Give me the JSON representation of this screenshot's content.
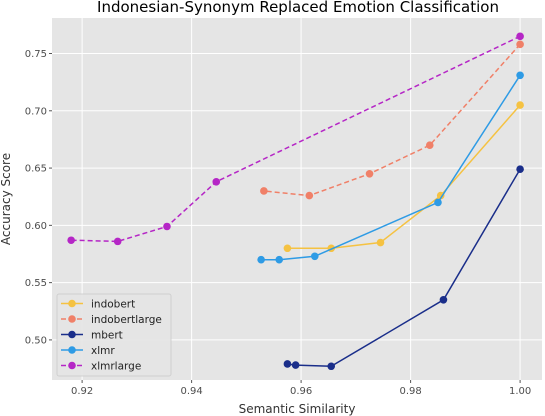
{
  "chart_data": {
    "type": "line",
    "title": "Indonesian-Synonym Replaced Emotion Classification",
    "xlabel": "Semantic Similarity",
    "ylabel": "Accuracy Score",
    "xlim": [
      0.9145,
      1.004
    ],
    "ylim": [
      0.465,
      0.781
    ],
    "xticks": [
      0.92,
      0.94,
      0.96,
      0.98,
      1.0
    ],
    "xtick_labels": [
      "0.92",
      "0.94",
      "0.96",
      "0.98",
      "1.00"
    ],
    "yticks": [
      0.5,
      0.55,
      0.6,
      0.65,
      0.7,
      0.75
    ],
    "ytick_labels": [
      "0.50",
      "0.55",
      "0.60",
      "0.65",
      "0.70",
      "0.75"
    ],
    "grid": true,
    "legend_position": "bottom-left",
    "series": [
      {
        "name": "indobert",
        "color": "#f5c242",
        "dashed": false,
        "x": [
          1.0,
          0.9855,
          0.9745,
          0.9655,
          0.9575
        ],
        "y": [
          0.705,
          0.626,
          0.585,
          0.58,
          0.58
        ]
      },
      {
        "name": "indobertlarge",
        "color": "#f08068",
        "dashed": true,
        "x": [
          1.0,
          0.9835,
          0.9725,
          0.9615,
          0.9532
        ],
        "y": [
          0.758,
          0.67,
          0.645,
          0.626,
          0.63
        ]
      },
      {
        "name": "mbert",
        "color": "#1a2e8a",
        "dashed": false,
        "x": [
          1.0,
          0.986,
          0.9655,
          0.959,
          0.9575
        ],
        "y": [
          0.649,
          0.535,
          0.477,
          0.478,
          0.479
        ]
      },
      {
        "name": "xlmr",
        "color": "#2e9be5",
        "dashed": false,
        "x": [
          1.0,
          0.985,
          0.9625,
          0.956,
          0.9527
        ],
        "y": [
          0.731,
          0.62,
          0.573,
          0.57,
          0.57
        ]
      },
      {
        "name": "xlmrlarge",
        "color": "#b526c6",
        "dashed": true,
        "x": [
          1.0,
          0.9445,
          0.9355,
          0.9265,
          0.918
        ],
        "y": [
          0.765,
          0.638,
          0.599,
          0.586,
          0.587
        ]
      }
    ]
  }
}
